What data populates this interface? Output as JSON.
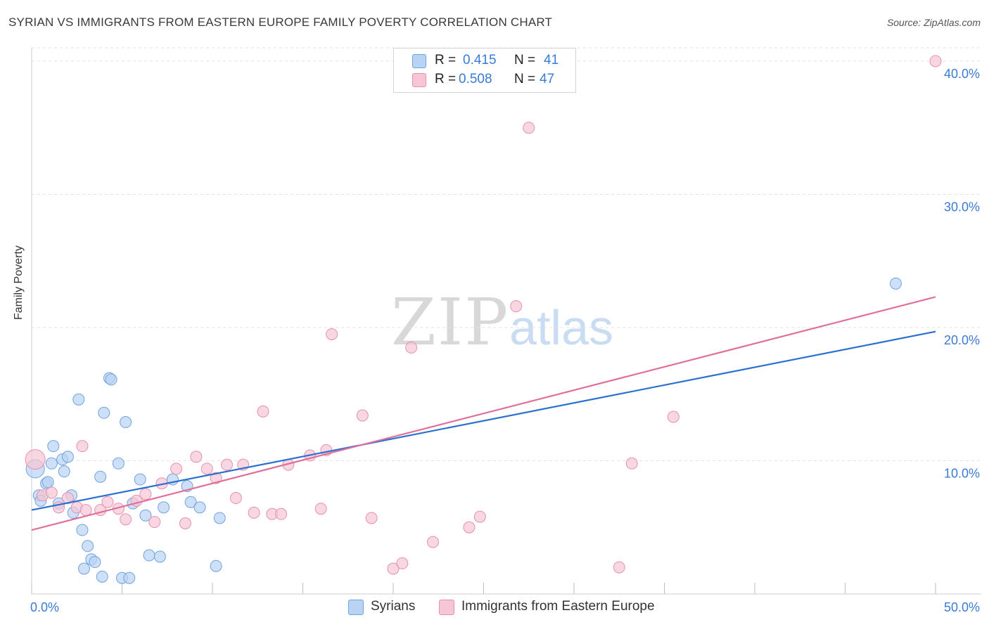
{
  "header": {
    "title": "SYRIAN VS IMMIGRANTS FROM EASTERN EUROPE FAMILY POVERTY CORRELATION CHART",
    "source": "Source: ZipAtlas.com"
  },
  "watermark": {
    "zip": "ZIP",
    "atlas": "atlas"
  },
  "colors": {
    "syrians": "#6fa3e0",
    "syrians_fill": "#b9d3f3",
    "syrians_line": "#2b70d0",
    "eastern": "#e890ac",
    "eastern_fill": "#f7c6d5",
    "eastern_line": "#e0709a",
    "tick_text": "#3a7bd5",
    "grid": "#e3e3e3"
  },
  "legend": {
    "rows": [
      {
        "r_label": "R =",
        "r_value": "0.415",
        "n_label": "N =",
        "n_value": "41"
      },
      {
        "r_label": "R =",
        "r_value": "0.508",
        "n_label": "N =",
        "n_value": "47"
      }
    ]
  },
  "chart_data": {
    "type": "scatter",
    "title": "SYRIAN VS IMMIGRANTS FROM EASTERN EUROPE FAMILY POVERTY CORRELATION CHART",
    "xlabel": "",
    "ylabel": "Family Poverty",
    "xlim": [
      0,
      50
    ],
    "ylim": [
      0,
      41
    ],
    "x_tick_labels": [
      {
        "value": 0,
        "label": "0.0%"
      },
      {
        "value": 50,
        "label": "50.0%"
      }
    ],
    "y_tick_labels": [
      {
        "value": 10,
        "label": "10.0%"
      },
      {
        "value": 20,
        "label": "20.0%"
      },
      {
        "value": 30,
        "label": "30.0%"
      },
      {
        "value": 40,
        "label": "40.0%"
      }
    ],
    "x_minor_ticks": [
      0,
      5,
      10,
      15,
      20,
      25,
      30,
      35,
      40,
      45,
      50
    ],
    "grid": true,
    "legend_position": "top-center",
    "series": [
      {
        "name": "Syrians",
        "trend": {
          "x": [
            0,
            50
          ],
          "y": [
            6.3,
            19.7
          ]
        },
        "points": [
          [
            0.2,
            9.4
          ],
          [
            0.4,
            7.4
          ],
          [
            0.5,
            7.0
          ],
          [
            0.8,
            8.3
          ],
          [
            0.9,
            8.4
          ],
          [
            1.1,
            9.8
          ],
          [
            1.2,
            11.1
          ],
          [
            1.5,
            6.8
          ],
          [
            1.7,
            10.1
          ],
          [
            1.8,
            9.2
          ],
          [
            2.0,
            10.3
          ],
          [
            2.2,
            7.4
          ],
          [
            2.3,
            6.1
          ],
          [
            2.6,
            14.6
          ],
          [
            2.8,
            4.8
          ],
          [
            2.9,
            1.9
          ],
          [
            3.1,
            3.6
          ],
          [
            3.3,
            2.6
          ],
          [
            3.5,
            2.4
          ],
          [
            3.8,
            8.8
          ],
          [
            3.9,
            1.3
          ],
          [
            4.0,
            13.6
          ],
          [
            4.3,
            16.2
          ],
          [
            4.4,
            16.1
          ],
          [
            4.8,
            9.8
          ],
          [
            5.0,
            1.2
          ],
          [
            5.2,
            12.9
          ],
          [
            5.4,
            1.2
          ],
          [
            5.6,
            6.8
          ],
          [
            6.0,
            8.6
          ],
          [
            6.3,
            5.9
          ],
          [
            6.5,
            2.9
          ],
          [
            7.1,
            2.8
          ],
          [
            7.3,
            6.5
          ],
          [
            7.8,
            8.6
          ],
          [
            8.6,
            8.1
          ],
          [
            8.8,
            6.9
          ],
          [
            9.3,
            6.5
          ],
          [
            10.2,
            2.1
          ],
          [
            10.4,
            5.7
          ],
          [
            47.8,
            23.3
          ]
        ]
      },
      {
        "name": "Immigrants from Eastern Europe",
        "trend": {
          "x": [
            0,
            50
          ],
          "y": [
            4.8,
            22.3
          ]
        },
        "points": [
          [
            0.2,
            10.1
          ],
          [
            0.6,
            7.4
          ],
          [
            1.1,
            7.6
          ],
          [
            1.5,
            6.5
          ],
          [
            2.0,
            7.2
          ],
          [
            2.5,
            6.5
          ],
          [
            2.8,
            11.1
          ],
          [
            3.0,
            6.3
          ],
          [
            3.8,
            6.3
          ],
          [
            4.2,
            6.9
          ],
          [
            4.8,
            6.4
          ],
          [
            5.2,
            5.6
          ],
          [
            5.8,
            7.0
          ],
          [
            6.3,
            7.5
          ],
          [
            6.8,
            5.4
          ],
          [
            7.2,
            8.3
          ],
          [
            8.0,
            9.4
          ],
          [
            8.5,
            5.3
          ],
          [
            9.1,
            10.3
          ],
          [
            9.7,
            9.4
          ],
          [
            10.2,
            8.7
          ],
          [
            10.8,
            9.7
          ],
          [
            11.3,
            7.2
          ],
          [
            11.7,
            9.7
          ],
          [
            12.3,
            6.1
          ],
          [
            12.8,
            13.7
          ],
          [
            13.3,
            6.0
          ],
          [
            13.8,
            6.0
          ],
          [
            14.2,
            9.7
          ],
          [
            15.4,
            10.4
          ],
          [
            16.0,
            6.4
          ],
          [
            16.3,
            10.8
          ],
          [
            16.6,
            19.5
          ],
          [
            18.3,
            13.4
          ],
          [
            18.8,
            5.7
          ],
          [
            20.0,
            1.9
          ],
          [
            20.5,
            2.3
          ],
          [
            21.0,
            18.5
          ],
          [
            22.2,
            3.9
          ],
          [
            24.2,
            5.0
          ],
          [
            24.8,
            5.8
          ],
          [
            26.8,
            21.6
          ],
          [
            27.5,
            35.0
          ],
          [
            32.5,
            2.0
          ],
          [
            33.2,
            9.8
          ],
          [
            35.5,
            13.3
          ],
          [
            50.0,
            40.0
          ]
        ]
      }
    ]
  },
  "bottom_legend": {
    "syrians_label": "Syrians",
    "eastern_label": "Immigrants from Eastern Europe"
  }
}
